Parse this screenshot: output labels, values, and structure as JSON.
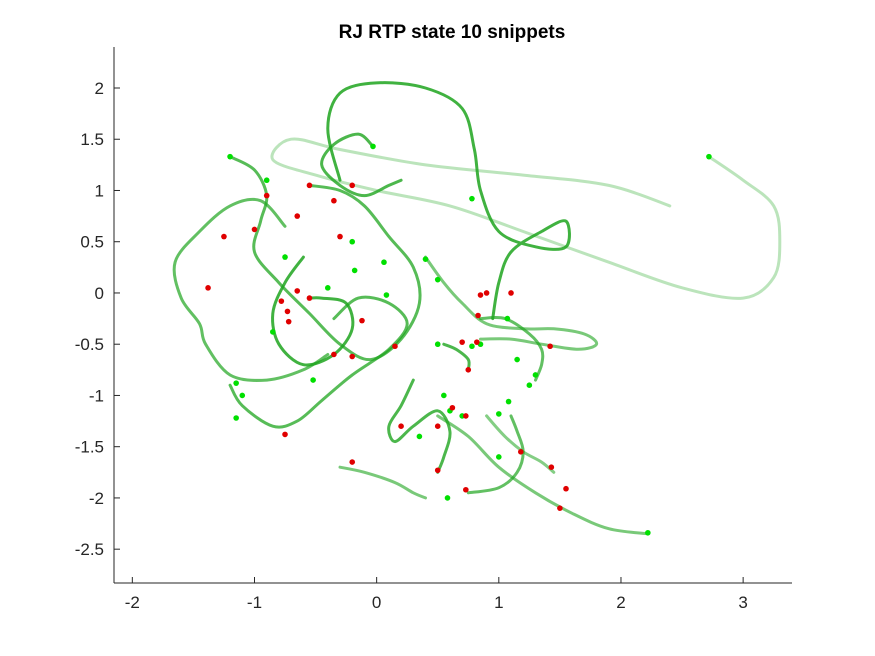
{
  "chart_data": {
    "type": "line",
    "title": "RJ  RTP state 10 snippets",
    "xlabel": "",
    "ylabel": "",
    "xlim": [
      -2.15,
      3.4
    ],
    "ylim": [
      -2.83,
      2.4
    ],
    "xticks": [
      -2,
      -1,
      0,
      1,
      2,
      3
    ],
    "yticks": [
      -2.5,
      -2,
      -1.5,
      -1,
      -0.5,
      0,
      0.5,
      1,
      1.5,
      2
    ],
    "xtick_labels": [
      "-2",
      "-1",
      "0",
      "1",
      "2",
      "3"
    ],
    "ytick_labels": [
      "-2.5",
      "-2",
      "-1.5",
      "-1",
      "-0.5",
      "0",
      "0.5",
      "1",
      "1.5",
      "2"
    ],
    "grid": false,
    "box": false,
    "colors": {
      "line": "#1fa51f",
      "start_marker": "#00e000",
      "end_marker": "#e00000"
    },
    "series": [
      {
        "start": [
          2.72,
          1.33
        ],
        "end": [
          3.3,
          0.0
        ],
        "alpha": 0.3,
        "points": [
          [
            2.72,
            1.33
          ],
          [
            3.0,
            1.1
          ],
          [
            3.25,
            0.85
          ],
          [
            3.3,
            0.5
          ],
          [
            3.25,
            0.15
          ],
          [
            3.0,
            -0.05
          ],
          [
            2.5,
            0.05
          ],
          [
            1.9,
            0.3
          ],
          [
            1.2,
            0.6
          ],
          [
            0.6,
            0.85
          ],
          [
            0.0,
            1.0
          ],
          [
            -0.5,
            1.15
          ],
          [
            -0.85,
            1.3
          ],
          [
            -0.7,
            1.5
          ],
          [
            -0.3,
            1.4
          ],
          [
            0.4,
            1.25
          ],
          [
            1.2,
            1.15
          ],
          [
            1.9,
            1.05
          ],
          [
            2.4,
            0.85
          ]
        ]
      },
      {
        "start": [
          -1.2,
          1.33
        ],
        "end": [
          -0.55,
          1.05
        ],
        "alpha": 0.75,
        "points": [
          [
            -1.2,
            1.33
          ],
          [
            -1.0,
            1.2
          ],
          [
            -0.9,
            0.95
          ],
          [
            -0.95,
            0.7
          ],
          [
            -1.0,
            0.4
          ],
          [
            -0.8,
            0.1
          ],
          [
            -0.55,
            -0.2
          ],
          [
            -0.3,
            -0.5
          ],
          [
            -0.05,
            -0.65
          ],
          [
            0.2,
            -0.45
          ],
          [
            0.35,
            -0.1
          ],
          [
            0.3,
            0.25
          ],
          [
            0.1,
            0.55
          ],
          [
            -0.1,
            0.85
          ],
          [
            -0.3,
            1.0
          ],
          [
            -0.55,
            1.05
          ]
        ]
      },
      {
        "start": [
          -0.03,
          1.43
        ],
        "end": [
          0.2,
          1.1
        ],
        "alpha": 0.8,
        "points": [
          [
            -0.03,
            1.43
          ],
          [
            -0.15,
            1.55
          ],
          [
            -0.35,
            1.45
          ],
          [
            -0.45,
            1.25
          ],
          [
            -0.3,
            1.05
          ],
          [
            -0.1,
            0.95
          ],
          [
            0.1,
            1.05
          ],
          [
            0.2,
            1.1
          ]
        ]
      },
      {
        "start": [
          -0.45,
          1.95
        ],
        "end": [
          1.55,
          0.4
        ],
        "alpha": 0.85,
        "points": [
          [
            -0.3,
            1.1
          ],
          [
            -0.4,
            1.6
          ],
          [
            -0.3,
            1.95
          ],
          [
            0.0,
            2.05
          ],
          [
            0.4,
            2.0
          ],
          [
            0.7,
            1.8
          ],
          [
            0.8,
            1.4
          ],
          [
            0.85,
            1.0
          ],
          [
            1.0,
            0.6
          ],
          [
            1.3,
            0.45
          ],
          [
            1.55,
            0.45
          ],
          [
            1.55,
            0.7
          ],
          [
            1.35,
            0.6
          ],
          [
            1.1,
            0.4
          ],
          [
            1.0,
            0.1
          ],
          [
            0.95,
            -0.25
          ]
        ]
      },
      {
        "start": [
          -0.75,
          0.65
        ],
        "end": [
          -1.25,
          0.55
        ],
        "alpha": 0.7,
        "points": [
          [
            -0.75,
            0.65
          ],
          [
            -0.95,
            0.9
          ],
          [
            -1.2,
            0.85
          ],
          [
            -1.45,
            0.6
          ],
          [
            -1.65,
            0.3
          ],
          [
            -1.6,
            -0.05
          ],
          [
            -1.45,
            -0.3
          ],
          [
            -1.4,
            -0.5
          ],
          [
            -1.2,
            -0.8
          ],
          [
            -0.9,
            -0.85
          ],
          [
            -0.6,
            -0.75
          ],
          [
            -0.4,
            -0.6
          ]
        ]
      },
      {
        "start": [
          -1.2,
          -0.9
        ],
        "end": [
          -0.2,
          -1.65
        ],
        "alpha": 0.75,
        "points": [
          [
            -1.2,
            -0.9
          ],
          [
            -1.1,
            -1.1
          ],
          [
            -0.85,
            -1.3
          ],
          [
            -0.65,
            -1.25
          ],
          [
            -0.45,
            -1.05
          ],
          [
            -0.2,
            -0.8
          ],
          [
            0.1,
            -0.55
          ],
          [
            0.25,
            -0.3
          ],
          [
            0.1,
            -0.1
          ],
          [
            -0.15,
            -0.05
          ],
          [
            -0.35,
            -0.25
          ]
        ]
      },
      {
        "start": [
          -0.6,
          0.35
        ],
        "end": [
          -0.55,
          -0.05
        ],
        "alpha": 0.85,
        "points": [
          [
            -0.6,
            0.35
          ],
          [
            -0.75,
            0.1
          ],
          [
            -0.85,
            -0.2
          ],
          [
            -0.8,
            -0.5
          ],
          [
            -0.6,
            -0.7
          ],
          [
            -0.35,
            -0.6
          ],
          [
            -0.2,
            -0.35
          ],
          [
            -0.25,
            -0.1
          ],
          [
            -0.45,
            -0.05
          ],
          [
            -0.55,
            -0.05
          ]
        ]
      },
      {
        "start": [
          0.4,
          0.35
        ],
        "end": [
          0.7,
          -0.5
        ],
        "alpha": 0.6,
        "points": [
          [
            0.4,
            0.35
          ],
          [
            0.55,
            0.1
          ],
          [
            0.7,
            -0.1
          ],
          [
            0.9,
            -0.3
          ],
          [
            1.2,
            -0.35
          ],
          [
            1.45,
            -0.35
          ],
          [
            1.7,
            -0.4
          ],
          [
            1.8,
            -0.5
          ],
          [
            1.65,
            -0.55
          ],
          [
            1.35,
            -0.5
          ],
          [
            1.1,
            -0.45
          ],
          [
            0.85,
            -0.45
          ]
        ]
      },
      {
        "start": [
          0.3,
          -0.85
        ],
        "end": [
          0.5,
          -1.75
        ],
        "alpha": 0.8,
        "points": [
          [
            0.3,
            -0.85
          ],
          [
            0.2,
            -1.1
          ],
          [
            0.1,
            -1.3
          ],
          [
            0.15,
            -1.45
          ],
          [
            0.3,
            -1.3
          ],
          [
            0.5,
            -1.15
          ],
          [
            0.6,
            -1.35
          ],
          [
            0.55,
            -1.6
          ],
          [
            0.5,
            -1.75
          ]
        ]
      },
      {
        "start": [
          0.85,
          -0.25
        ],
        "end": [
          1.3,
          -0.85
        ],
        "alpha": 0.7,
        "points": [
          [
            0.85,
            -0.25
          ],
          [
            1.05,
            -0.25
          ],
          [
            1.25,
            -0.4
          ],
          [
            1.35,
            -0.55
          ],
          [
            1.35,
            -0.7
          ],
          [
            1.3,
            -0.85
          ]
        ]
      },
      {
        "start": [
          0.9,
          -1.2
        ],
        "end": [
          1.45,
          -1.75
        ],
        "alpha": 0.55,
        "points": [
          [
            0.9,
            -1.2
          ],
          [
            1.05,
            -1.4
          ],
          [
            1.2,
            -1.55
          ],
          [
            1.35,
            -1.65
          ],
          [
            1.45,
            -1.75
          ]
        ]
      },
      {
        "start": [
          0.75,
          -1.95
        ],
        "end": [
          1.1,
          -1.2
        ],
        "alpha": 0.7,
        "points": [
          [
            0.75,
            -1.95
          ],
          [
            1.0,
            -1.9
          ],
          [
            1.15,
            -1.75
          ],
          [
            1.2,
            -1.55
          ],
          [
            1.15,
            -1.35
          ],
          [
            1.1,
            -1.2
          ]
        ]
      },
      {
        "start": [
          0.5,
          -1.2
        ],
        "end": [
          2.22,
          -2.35
        ],
        "alpha": 0.6,
        "points": [
          [
            0.5,
            -1.2
          ],
          [
            0.75,
            -1.4
          ],
          [
            1.0,
            -1.7
          ],
          [
            1.3,
            -1.95
          ],
          [
            1.6,
            -2.15
          ],
          [
            1.9,
            -2.3
          ],
          [
            2.22,
            -2.35
          ]
        ]
      },
      {
        "start": [
          -0.3,
          -1.7
        ],
        "end": [
          0.4,
          -2.0
        ],
        "alpha": 0.6,
        "points": [
          [
            -0.3,
            -1.7
          ],
          [
            -0.1,
            -1.75
          ],
          [
            0.15,
            -1.85
          ],
          [
            0.3,
            -1.95
          ],
          [
            0.4,
            -2.0
          ]
        ]
      },
      {
        "start": [
          0.55,
          -0.5
        ],
        "end": [
          0.75,
          -0.75
        ],
        "alpha": 0.8,
        "points": [
          [
            0.55,
            -0.5
          ],
          [
            0.65,
            -0.55
          ],
          [
            0.75,
            -0.65
          ],
          [
            0.75,
            -0.75
          ]
        ]
      }
    ],
    "start_points": [
      [
        -1.2,
        1.33
      ],
      [
        -0.03,
        1.43
      ],
      [
        2.72,
        1.33
      ],
      [
        -0.9,
        1.1
      ],
      [
        -0.75,
        0.35
      ],
      [
        0.4,
        0.33
      ],
      [
        0.5,
        0.13
      ],
      [
        0.78,
        0.92
      ],
      [
        -0.2,
        0.5
      ],
      [
        0.06,
        0.3
      ],
      [
        -0.18,
        0.22
      ],
      [
        0.08,
        -0.02
      ],
      [
        -0.4,
        0.05
      ],
      [
        1.07,
        -0.25
      ],
      [
        -0.85,
        -0.38
      ],
      [
        -0.52,
        -0.85
      ],
      [
        0.85,
        -0.5
      ],
      [
        0.5,
        -0.5
      ],
      [
        1.3,
        -0.8
      ],
      [
        1.15,
        -0.65
      ],
      [
        1.25,
        -0.9
      ],
      [
        -1.1,
        -1.0
      ],
      [
        -1.15,
        -1.22
      ],
      [
        -1.15,
        -0.88
      ],
      [
        0.55,
        -1.0
      ],
      [
        0.6,
        -1.15
      ],
      [
        0.7,
        -1.2
      ],
      [
        0.35,
        -1.4
      ],
      [
        1.0,
        -1.6
      ],
      [
        0.58,
        -2.0
      ],
      [
        2.22,
        -2.34
      ],
      [
        0.78,
        -0.52
      ],
      [
        1.08,
        -1.06
      ],
      [
        1.0,
        -1.18
      ]
    ],
    "end_points": [
      [
        -0.9,
        0.95
      ],
      [
        -0.55,
        1.05
      ],
      [
        -0.35,
        0.9
      ],
      [
        -0.65,
        0.75
      ],
      [
        -0.2,
        1.05
      ],
      [
        -0.3,
        0.55
      ],
      [
        -1.25,
        0.55
      ],
      [
        -1.0,
        0.62
      ],
      [
        -1.38,
        0.05
      ],
      [
        -0.65,
        0.02
      ],
      [
        -0.78,
        -0.08
      ],
      [
        -0.73,
        -0.18
      ],
      [
        -0.72,
        -0.28
      ],
      [
        -0.55,
        -0.05
      ],
      [
        -0.12,
        -0.27
      ],
      [
        -0.35,
        -0.6
      ],
      [
        -0.2,
        -0.62
      ],
      [
        0.15,
        -0.52
      ],
      [
        0.83,
        -0.22
      ],
      [
        0.85,
        -0.02
      ],
      [
        0.9,
        0.0
      ],
      [
        1.1,
        0.0
      ],
      [
        0.82,
        -0.48
      ],
      [
        0.7,
        -0.48
      ],
      [
        1.42,
        -0.52
      ],
      [
        0.75,
        -0.75
      ],
      [
        -0.75,
        -1.38
      ],
      [
        0.2,
        -1.3
      ],
      [
        0.5,
        -1.3
      ],
      [
        0.73,
        -1.2
      ],
      [
        0.62,
        -1.12
      ],
      [
        -0.2,
        -1.65
      ],
      [
        0.5,
        -1.73
      ],
      [
        0.73,
        -1.92
      ],
      [
        1.18,
        -1.55
      ],
      [
        1.43,
        -1.7
      ],
      [
        1.55,
        -1.91
      ],
      [
        1.5,
        -2.1
      ]
    ]
  }
}
